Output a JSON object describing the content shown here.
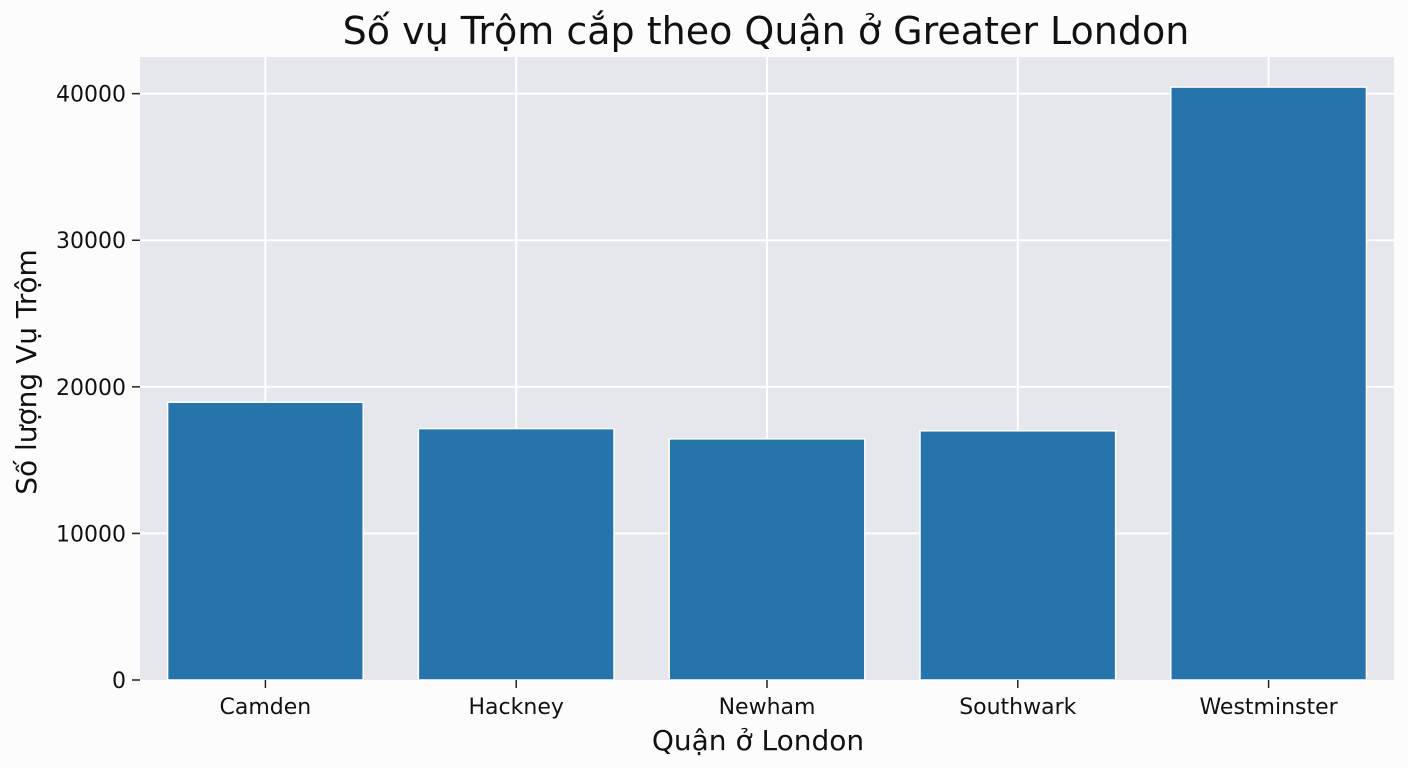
{
  "chart_data": {
    "type": "bar",
    "title": "Số vụ Trộm cắp theo Quận ở Greater London",
    "xlabel": "Quận ở London",
    "ylabel": "Số lượng Vụ Trộm",
    "categories": [
      "Camden",
      "Hackney",
      "Newham",
      "Southwark",
      "Westminster"
    ],
    "values": [
      18950,
      17150,
      16450,
      17000,
      40450
    ],
    "ylim": [
      0,
      42500
    ],
    "yticks": [
      0,
      10000,
      20000,
      30000,
      40000
    ],
    "ytick_labels": [
      "0",
      "10000",
      "20000",
      "30000",
      "40000"
    ],
    "grid": true,
    "bar_color": "#2774ac",
    "background_color": "#e5e7ed"
  }
}
